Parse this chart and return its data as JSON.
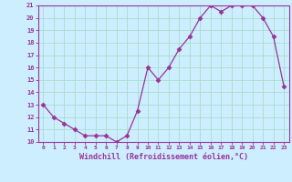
{
  "x": [
    0,
    1,
    2,
    3,
    4,
    5,
    6,
    7,
    8,
    9,
    10,
    11,
    12,
    13,
    14,
    15,
    16,
    17,
    18,
    19,
    20,
    21,
    22,
    23
  ],
  "y": [
    13.0,
    12.0,
    11.5,
    11.0,
    10.5,
    10.5,
    10.5,
    10.0,
    10.5,
    12.5,
    16.0,
    15.0,
    16.0,
    17.5,
    18.5,
    20.0,
    21.0,
    20.5,
    21.0,
    21.0,
    21.0,
    20.0,
    18.5,
    14.5
  ],
  "xlim": [
    -0.5,
    23.5
  ],
  "ylim": [
    10,
    21
  ],
  "yticks": [
    10,
    11,
    12,
    13,
    14,
    15,
    16,
    17,
    18,
    19,
    20,
    21
  ],
  "xticks": [
    0,
    1,
    2,
    3,
    4,
    5,
    6,
    7,
    8,
    9,
    10,
    11,
    12,
    13,
    14,
    15,
    16,
    17,
    18,
    19,
    20,
    21,
    22,
    23
  ],
  "xlabel": "Windchill (Refroidissement éolien,°C)",
  "line_color": "#993399",
  "marker": "D",
  "marker_size": 2.5,
  "bg_color": "#cceeff",
  "grid_color": "#aaddcc",
  "axis_color": "#993399",
  "tick_color": "#993399",
  "label_color": "#993399"
}
